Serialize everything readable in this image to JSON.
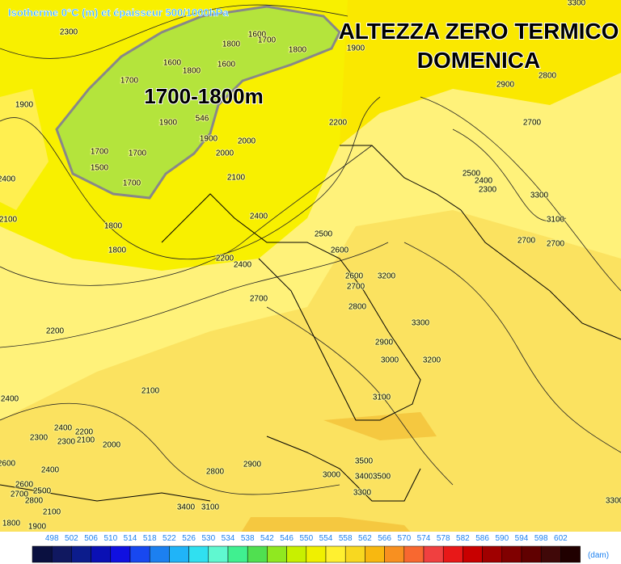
{
  "header": {
    "source_label": "Isotherme 0°C (m) et épaisseur 500/1000hPa"
  },
  "title": {
    "line1": "ALTEZZA ZERO TERMICO",
    "line2": "DOMENICA"
  },
  "annotation": "1700-1800m",
  "contour_labels": [
    "2300",
    "1900",
    "2400",
    "2100",
    "1700",
    "1600",
    "1800",
    "1800",
    "1600",
    "1600",
    "1700",
    "1800",
    "1900",
    "1900",
    "1700",
    "1700",
    "1500",
    "1700",
    "1800",
    "1800",
    "1900",
    "2000",
    "2000",
    "2100",
    "2200",
    "2400",
    "2500",
    "2600",
    "2200",
    "2400",
    "2600",
    "2700",
    "3200",
    "2700",
    "2800",
    "3300",
    "2900",
    "3000",
    "3200",
    "3100",
    "2200",
    "2400",
    "2100",
    "2400",
    "2200",
    "2300",
    "2300",
    "2100",
    "2000",
    "2600",
    "2400",
    "2800",
    "2900",
    "3000",
    "3500",
    "3400",
    "3500",
    "3300",
    "2600",
    "2500",
    "2700",
    "2800",
    "2100",
    "1900",
    "1800",
    "3400",
    "3100",
    "2900",
    "2800",
    "2700",
    "2500",
    "2400",
    "2300",
    "3300",
    "3100",
    "2700",
    "2700",
    "3300",
    "3300",
    "546"
  ],
  "colorbar": {
    "ticks": [
      498,
      502,
      506,
      510,
      514,
      518,
      522,
      526,
      530,
      534,
      538,
      542,
      546,
      550,
      554,
      558,
      562,
      566,
      570,
      574,
      578,
      582,
      586,
      590,
      594,
      598,
      602
    ],
    "unit": "(dam)"
  }
}
